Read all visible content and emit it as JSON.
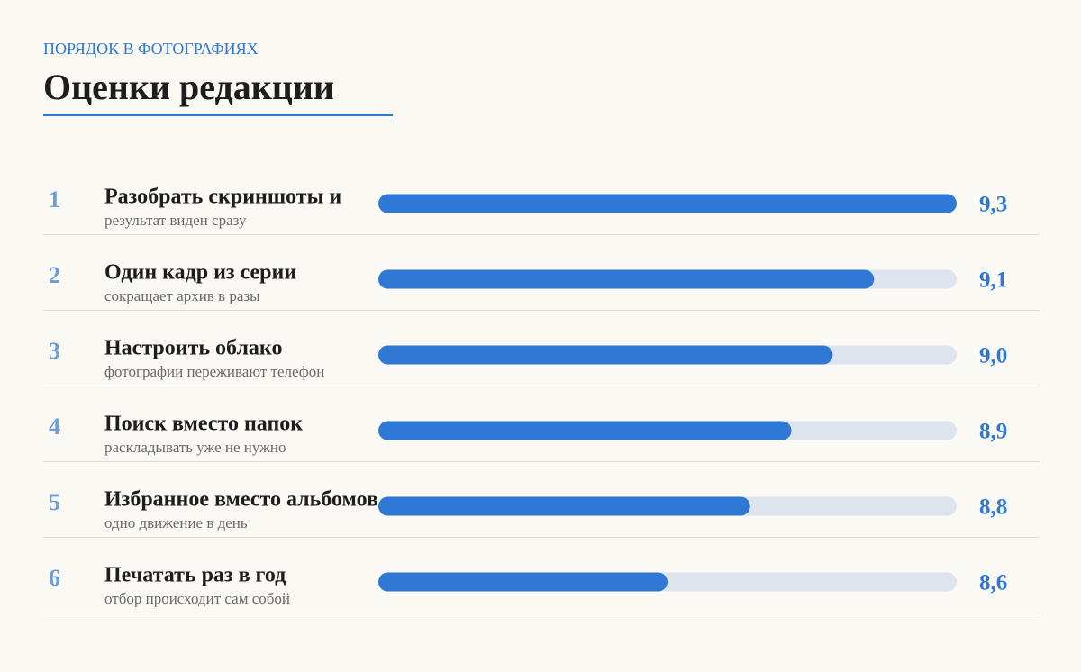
{
  "chart_data": {
    "type": "bar",
    "orientation": "horizontal",
    "kicker": "ПОРЯДОК В ФОТОГРАФИЯХ",
    "title": "Оценки редакции",
    "ranks": [
      1,
      2,
      3,
      4,
      5,
      6
    ],
    "categories": [
      "Разобрать скриншоты и",
      "Один кадр из серии",
      "Настроить облако",
      "Поиск вместо папок",
      "Избранное вместо альбомов",
      "Печатать раз в год"
    ],
    "subtitles": [
      "результат виден сразу",
      "сокращает архив в разы",
      "фотографии переживают телефон",
      "раскладывать уже не нужно",
      "одно движение в день",
      "отбор происходит сам собой"
    ],
    "values": [
      9.3,
      9.1,
      9.0,
      8.9,
      8.8,
      8.6
    ],
    "value_labels": [
      "9,3",
      "9,1",
      "9,0",
      "8,9",
      "8,8",
      "8,6"
    ],
    "xlim": [
      7.9,
      9.3
    ],
    "color": "#2f78d4",
    "track_color": "#dce4ee"
  }
}
